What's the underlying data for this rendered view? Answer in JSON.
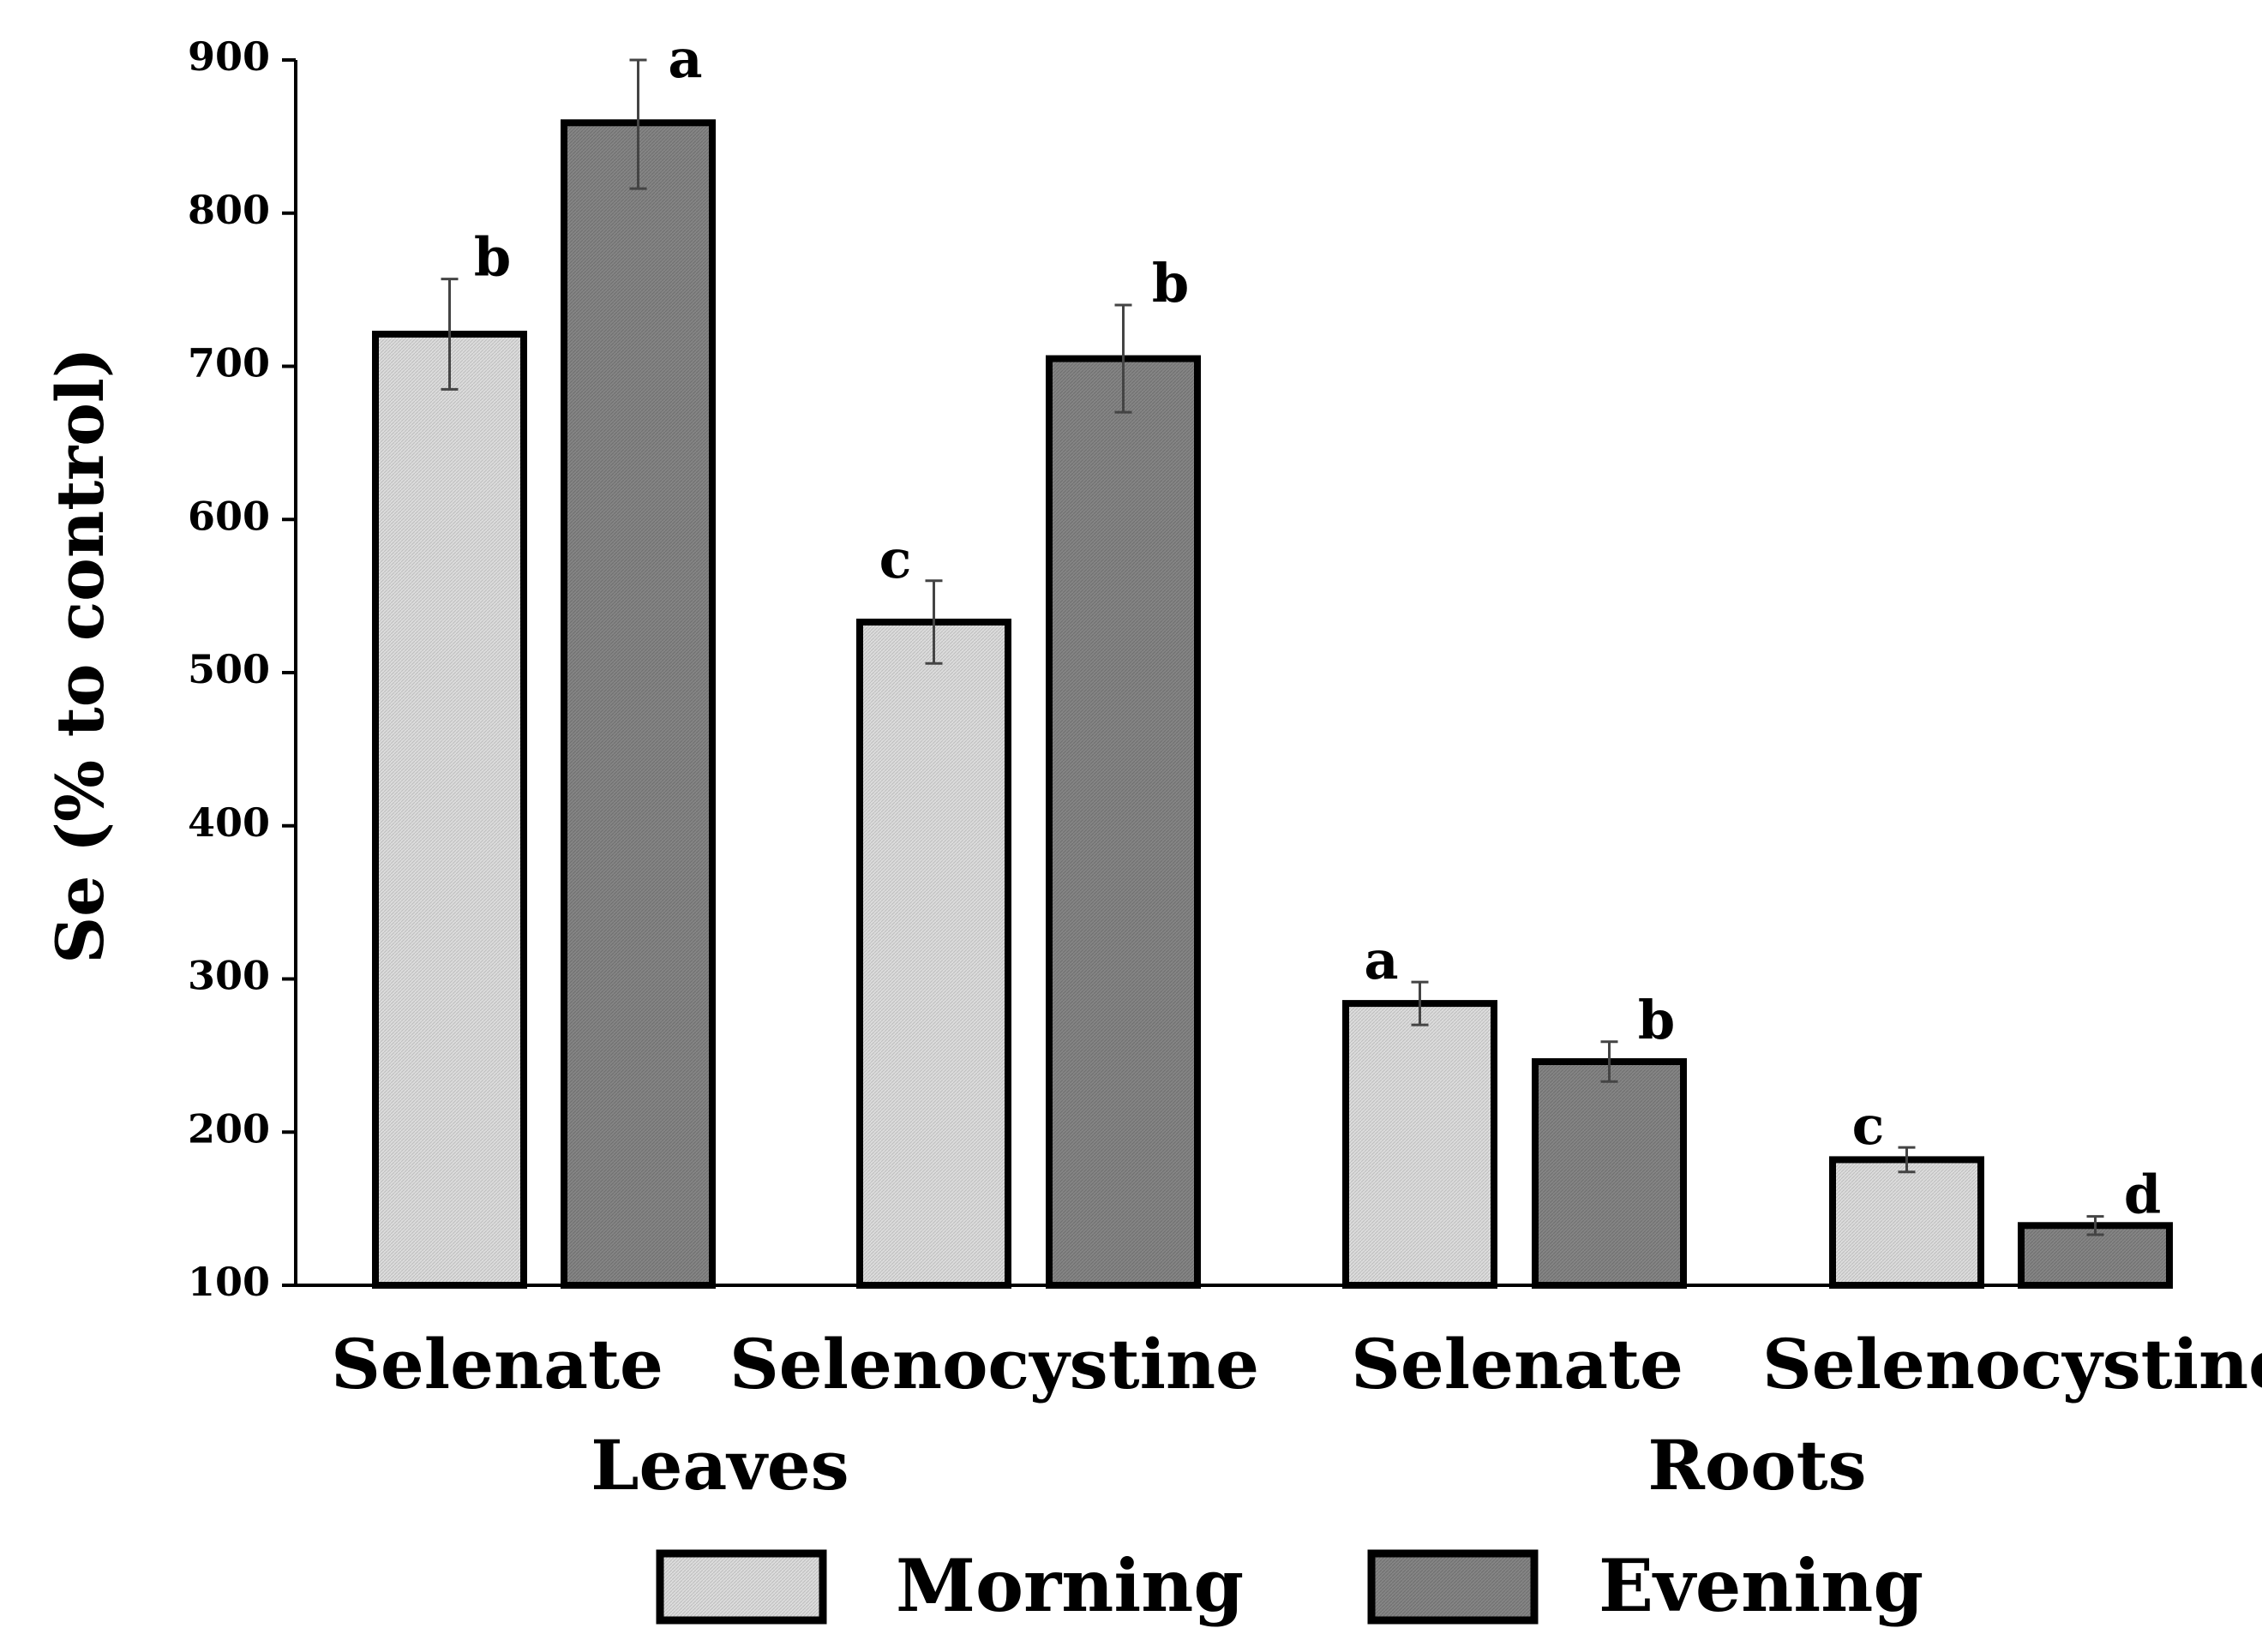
{
  "chart_data": {
    "type": "bar",
    "title": "",
    "ylabel": "Se (% to control)",
    "xlabel": "",
    "ylim": [
      100,
      900
    ],
    "yticks": [
      "100",
      "200",
      "300",
      "400",
      "500",
      "600",
      "700",
      "800",
      "900"
    ],
    "grid": false,
    "groups": [
      {
        "label": "Leaves",
        "categories": [
          "Selenate",
          "Selenocystine"
        ]
      },
      {
        "label": "Roots",
        "categories": [
          "Selenate",
          "Selenocystine"
        ]
      }
    ],
    "categories": [
      "Selenate",
      "Selenocystine",
      "Selenate",
      "Selenocystine"
    ],
    "series": [
      {
        "name": "Morning",
        "color": "#d3d3d3",
        "values": [
          721,
          533,
          284,
          182
        ],
        "errors": [
          36,
          27,
          14,
          8
        ],
        "letters": [
          "b",
          "c",
          "a",
          "c"
        ]
      },
      {
        "name": "Evening",
        "color": "#808080",
        "values": [
          859,
          705,
          246,
          139
        ],
        "errors": [
          43,
          35,
          13,
          6
        ],
        "letters": [
          "a",
          "b",
          "b",
          "d"
        ]
      }
    ],
    "legend_position": "bottom"
  }
}
